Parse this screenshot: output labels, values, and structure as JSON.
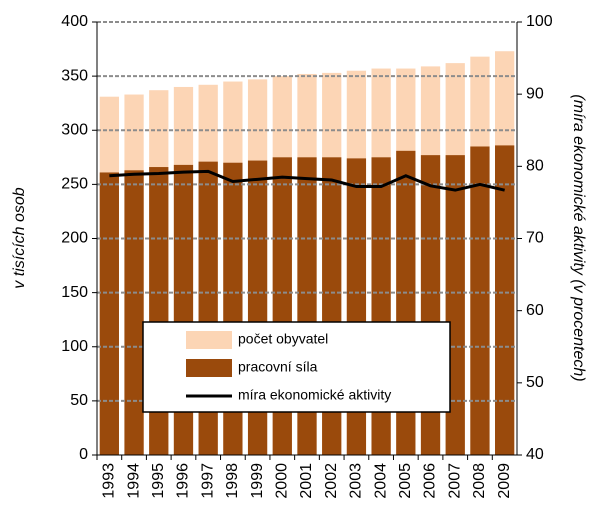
{
  "chart_data": {
    "type": "bar",
    "categories": [
      "1993",
      "1994",
      "1995",
      "1996",
      "1997",
      "1998",
      "1999",
      "2000",
      "2001",
      "2002",
      "2003",
      "2004",
      "2005",
      "2006",
      "2007",
      "2008",
      "2009"
    ],
    "series": [
      {
        "name": "počet obyvatel",
        "color": "#fcd5b5",
        "values": [
          331,
          333,
          337,
          340,
          342,
          345,
          347,
          350,
          352,
          353,
          355,
          357,
          357,
          359,
          362,
          368,
          373
        ]
      },
      {
        "name": "pracovní síla",
        "color": "#9a4a0c",
        "values": [
          261,
          263,
          266,
          268,
          271,
          270,
          272,
          275,
          275,
          275,
          274,
          275,
          281,
          277,
          277,
          285,
          286
        ]
      },
      {
        "name": "míra ekonomické aktivity",
        "color": "#000000",
        "type": "line",
        "axis": "y2",
        "values": [
          78.7,
          78.9,
          79.0,
          79.2,
          79.3,
          77.9,
          78.2,
          78.5,
          78.3,
          78.1,
          77.2,
          77.2,
          78.7,
          77.3,
          76.7,
          77.5,
          76.7
        ]
      }
    ],
    "ylabel": "v tisících osob",
    "y2label": "(míra ekonomické aktivity (v procentech)",
    "ylim": [
      0,
      400
    ],
    "yticks": [
      0,
      50,
      100,
      150,
      200,
      250,
      300,
      350,
      400
    ],
    "y2lim": [
      40,
      100
    ],
    "y2ticks": [
      40,
      50,
      60,
      70,
      80,
      90,
      100
    ],
    "grid": true
  }
}
